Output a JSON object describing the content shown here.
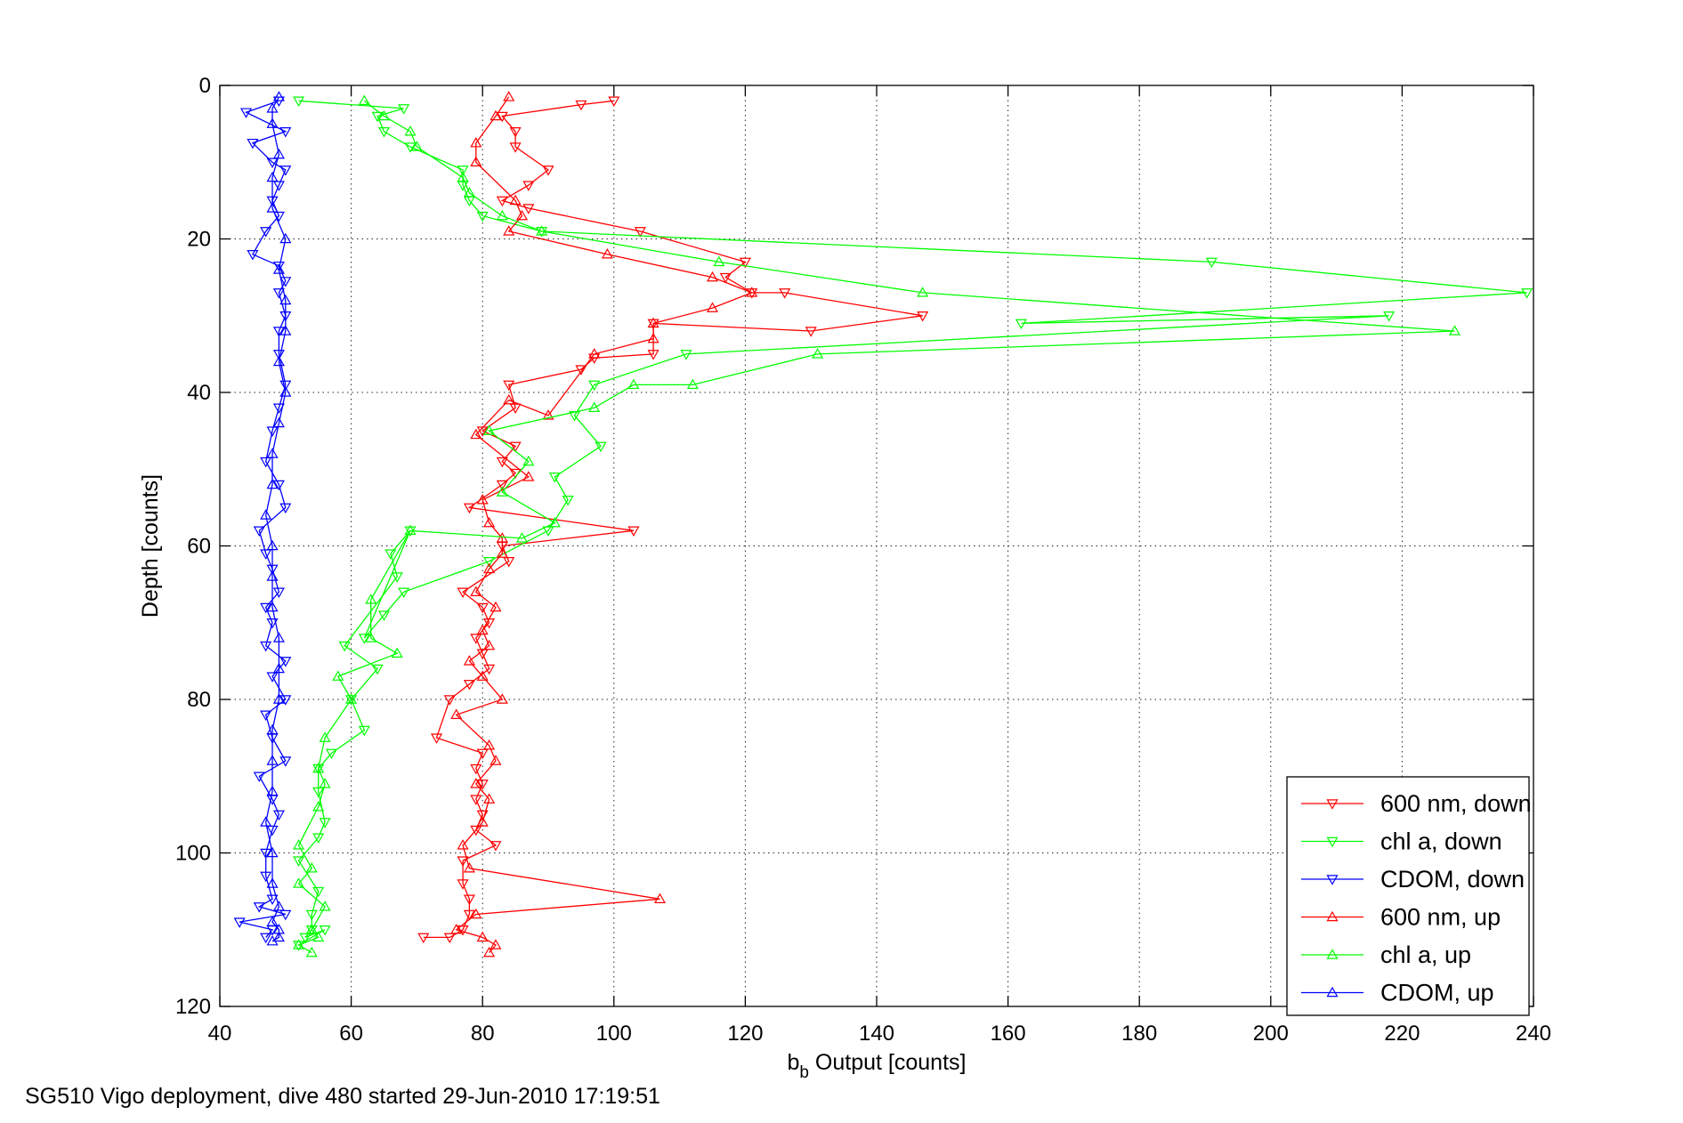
{
  "caption": "SG510 Vigo deployment, dive 480 started 29-Jun-2010 17:19:51",
  "chart_data": {
    "type": "line",
    "title": "",
    "xlabel_main": "b",
    "xlabel_sub": "b",
    "xlabel_rest": " Output [counts]",
    "ylabel": "Depth [counts]",
    "xlim": [
      40,
      240
    ],
    "ylim": [
      0,
      120
    ],
    "y_reversed": true,
    "grid": true,
    "legend_position": "bottom-right",
    "xticks": [
      40,
      60,
      80,
      100,
      120,
      140,
      160,
      180,
      200,
      220,
      240
    ],
    "yticks": [
      0,
      20,
      40,
      60,
      80,
      100,
      120
    ],
    "series": [
      {
        "name": "600 nm, down",
        "color": "#ff0000",
        "marker": "triangle-down",
        "points": [
          [
            100,
            2
          ],
          [
            95,
            2.5
          ],
          [
            83,
            4
          ],
          [
            85,
            6
          ],
          [
            85,
            8
          ],
          [
            90,
            11
          ],
          [
            87,
            13
          ],
          [
            83,
            15
          ],
          [
            87,
            16
          ],
          [
            104,
            19
          ],
          [
            120,
            23
          ],
          [
            117,
            25
          ],
          [
            121,
            27
          ],
          [
            126,
            27
          ],
          [
            147,
            30
          ],
          [
            130,
            32
          ],
          [
            106,
            31
          ],
          [
            106,
            35
          ],
          [
            97,
            35.5
          ],
          [
            95,
            37
          ],
          [
            84,
            39
          ],
          [
            85,
            42
          ],
          [
            80,
            45
          ],
          [
            85,
            47
          ],
          [
            83,
            49
          ],
          [
            85,
            50.5
          ],
          [
            83,
            52
          ],
          [
            78,
            55
          ],
          [
            103,
            58
          ],
          [
            83,
            60
          ],
          [
            84,
            62
          ],
          [
            77,
            66
          ],
          [
            80,
            68
          ],
          [
            81,
            70
          ],
          [
            79,
            72
          ],
          [
            80,
            74
          ],
          [
            81,
            76
          ],
          [
            78,
            78
          ],
          [
            75,
            80
          ],
          [
            73,
            85
          ],
          [
            80,
            87
          ],
          [
            79,
            89
          ],
          [
            80,
            91
          ],
          [
            79,
            93
          ],
          [
            80,
            95
          ],
          [
            79,
            97
          ],
          [
            82,
            99
          ],
          [
            77,
            101
          ],
          [
            77,
            104
          ],
          [
            78,
            106
          ],
          [
            78,
            108
          ],
          [
            77,
            110
          ],
          [
            75,
            111
          ],
          [
            71,
            111
          ]
        ]
      },
      {
        "name": "chl a, down",
        "color": "#00ff00",
        "marker": "triangle-down",
        "points": [
          [
            52,
            2
          ],
          [
            68,
            3
          ],
          [
            64,
            4
          ],
          [
            65,
            6
          ],
          [
            69,
            8
          ],
          [
            77,
            11
          ],
          [
            77,
            13
          ],
          [
            78,
            15
          ],
          [
            80,
            17
          ],
          [
            89,
            19
          ],
          [
            191,
            23
          ],
          [
            239,
            27
          ],
          [
            162,
            31
          ],
          [
            218,
            30
          ],
          [
            111,
            35
          ],
          [
            97,
            39
          ],
          [
            94,
            43
          ],
          [
            98,
            47
          ],
          [
            91,
            51
          ],
          [
            93,
            54
          ],
          [
            90,
            58
          ],
          [
            81,
            62
          ],
          [
            68,
            66
          ],
          [
            65,
            69
          ],
          [
            62,
            72
          ],
          [
            69,
            58
          ],
          [
            66,
            61
          ],
          [
            67,
            64
          ],
          [
            59,
            73
          ],
          [
            64,
            76
          ],
          [
            60,
            80
          ],
          [
            62,
            84
          ],
          [
            57,
            87
          ],
          [
            55,
            89
          ],
          [
            55,
            92
          ],
          [
            56,
            96
          ],
          [
            55,
            98
          ],
          [
            52,
            101
          ],
          [
            55,
            105
          ],
          [
            54,
            108
          ],
          [
            54,
            110
          ],
          [
            53,
            111
          ],
          [
            56,
            110
          ],
          [
            52,
            112
          ]
        ]
      },
      {
        "name": "CDOM, down",
        "color": "#0000ff",
        "marker": "triangle-down",
        "points": [
          [
            49,
            2
          ],
          [
            44,
            3.5
          ],
          [
            50,
            6
          ],
          [
            45,
            7.5
          ],
          [
            48,
            10
          ],
          [
            50,
            11
          ],
          [
            49,
            13
          ],
          [
            48,
            15
          ],
          [
            49,
            17
          ],
          [
            47,
            19
          ],
          [
            45,
            22
          ],
          [
            49,
            23.5
          ],
          [
            50,
            25.5
          ],
          [
            49,
            27
          ],
          [
            50,
            30
          ],
          [
            49,
            32
          ],
          [
            49,
            35
          ],
          [
            50,
            39
          ],
          [
            49,
            42
          ],
          [
            48,
            45
          ],
          [
            47,
            49
          ],
          [
            49,
            52
          ],
          [
            50,
            55
          ],
          [
            46,
            58
          ],
          [
            47,
            61
          ],
          [
            48,
            63
          ],
          [
            49,
            66
          ],
          [
            47,
            68
          ],
          [
            48,
            70
          ],
          [
            47,
            73
          ],
          [
            50,
            75
          ],
          [
            48,
            77
          ],
          [
            50,
            80
          ],
          [
            47,
            82
          ],
          [
            48,
            85
          ],
          [
            50,
            88
          ],
          [
            46,
            90
          ],
          [
            48,
            93
          ],
          [
            49,
            95
          ],
          [
            48,
            97
          ],
          [
            47,
            100
          ],
          [
            47,
            103
          ],
          [
            48,
            106
          ],
          [
            46,
            107
          ],
          [
            50,
            108
          ],
          [
            43,
            109
          ],
          [
            48,
            110
          ],
          [
            47,
            111
          ]
        ]
      },
      {
        "name": "600 nm, up",
        "color": "#ff0000",
        "marker": "triangle-up",
        "points": [
          [
            84,
            1.5
          ],
          [
            82,
            4
          ],
          [
            79,
            7.5
          ],
          [
            79,
            10
          ],
          [
            85,
            15
          ],
          [
            86,
            17
          ],
          [
            84,
            19
          ],
          [
            99,
            22
          ],
          [
            115,
            25
          ],
          [
            121,
            27
          ],
          [
            115,
            29
          ],
          [
            106,
            31
          ],
          [
            106,
            33
          ],
          [
            97,
            35
          ],
          [
            90,
            43
          ],
          [
            84,
            41
          ],
          [
            79,
            45.5
          ],
          [
            87,
            51
          ],
          [
            80,
            54
          ],
          [
            81,
            57
          ],
          [
            83,
            59
          ],
          [
            83,
            61
          ],
          [
            81,
            63
          ],
          [
            79,
            66
          ],
          [
            82,
            68
          ],
          [
            80,
            71
          ],
          [
            81,
            73
          ],
          [
            78,
            75
          ],
          [
            80,
            77
          ],
          [
            83,
            80
          ],
          [
            76,
            82
          ],
          [
            81,
            86
          ],
          [
            82,
            88
          ],
          [
            79,
            91
          ],
          [
            81,
            93
          ],
          [
            80,
            96
          ],
          [
            77,
            99
          ],
          [
            78,
            102
          ],
          [
            107,
            106
          ],
          [
            79,
            108
          ],
          [
            76,
            110
          ],
          [
            80,
            111
          ],
          [
            82,
            112
          ],
          [
            81,
            113
          ]
        ]
      },
      {
        "name": "chl a, up",
        "color": "#00ff00",
        "marker": "triangle-up",
        "points": [
          [
            62,
            2
          ],
          [
            65,
            4
          ],
          [
            69,
            6
          ],
          [
            70,
            8
          ],
          [
            77,
            12
          ],
          [
            78,
            14
          ],
          [
            83,
            17
          ],
          [
            89,
            19
          ],
          [
            116,
            23
          ],
          [
            147,
            27
          ],
          [
            228,
            32
          ],
          [
            131,
            35
          ],
          [
            112,
            39
          ],
          [
            103,
            39
          ],
          [
            97,
            42
          ],
          [
            81,
            45
          ],
          [
            87,
            49
          ],
          [
            83,
            53
          ],
          [
            91,
            57
          ],
          [
            86,
            59
          ],
          [
            69,
            58
          ],
          [
            63,
            67
          ],
          [
            63,
            72
          ],
          [
            67,
            74
          ],
          [
            58,
            77
          ],
          [
            60,
            80
          ],
          [
            56,
            85
          ],
          [
            55,
            89
          ],
          [
            56,
            91
          ],
          [
            55,
            94
          ],
          [
            52,
            99
          ],
          [
            54,
            102
          ],
          [
            52,
            104
          ],
          [
            56,
            107
          ],
          [
            54,
            110
          ],
          [
            55,
            111
          ],
          [
            52,
            112
          ],
          [
            54,
            113
          ]
        ]
      },
      {
        "name": "CDOM, up",
        "color": "#0000ff",
        "marker": "triangle-up",
        "points": [
          [
            49,
            1.5
          ],
          [
            48,
            3
          ],
          [
            48,
            5
          ],
          [
            49,
            9
          ],
          [
            48,
            12
          ],
          [
            48,
            16
          ],
          [
            50,
            20
          ],
          [
            49,
            24
          ],
          [
            50,
            28
          ],
          [
            50,
            32
          ],
          [
            49,
            36
          ],
          [
            50,
            40
          ],
          [
            49,
            44
          ],
          [
            48,
            48
          ],
          [
            48,
            52
          ],
          [
            47,
            56
          ],
          [
            48,
            60
          ],
          [
            48,
            64
          ],
          [
            48,
            68
          ],
          [
            49,
            72
          ],
          [
            49,
            76
          ],
          [
            49,
            80
          ],
          [
            48,
            84
          ],
          [
            48,
            88
          ],
          [
            48,
            92
          ],
          [
            47,
            96
          ],
          [
            48,
            100
          ],
          [
            48,
            104
          ],
          [
            49,
            107
          ],
          [
            48,
            109
          ],
          [
            49,
            110
          ],
          [
            49,
            111
          ],
          [
            48,
            111.5
          ]
        ]
      }
    ]
  }
}
